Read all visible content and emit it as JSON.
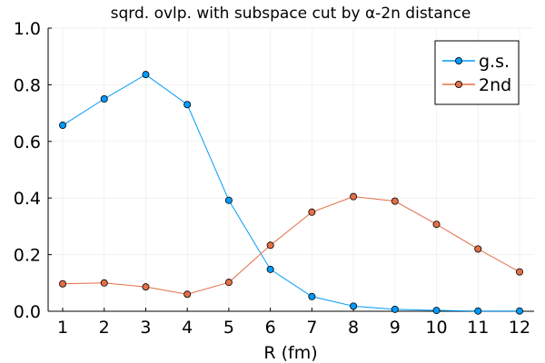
{
  "chart_data": {
    "type": "line",
    "title": "sqrd. ovlp. with subspace cut by α-2n distance",
    "xlabel": "R (fm)",
    "ylabel": "",
    "x": [
      1,
      2,
      3,
      4,
      5,
      6,
      7,
      8,
      9,
      10,
      11,
      12
    ],
    "xlim": [
      0.65,
      12.35
    ],
    "ylim": [
      0,
      1
    ],
    "xticks": [
      1,
      2,
      3,
      4,
      5,
      6,
      7,
      8,
      9,
      10,
      11,
      12
    ],
    "yticks": [
      0.0,
      0.2,
      0.4,
      0.6,
      0.8,
      1.0
    ],
    "ytick_labels": [
      "0.0",
      "0.2",
      "0.4",
      "0.6",
      "0.8",
      "1.0"
    ],
    "grid": true,
    "legend_position": "top-right",
    "series": [
      {
        "name": "g.s.",
        "color": "#009AFA",
        "values": [
          0.657,
          0.75,
          0.836,
          0.73,
          0.392,
          0.148,
          0.052,
          0.018,
          0.007,
          0.003,
          0.001,
          0.001
        ]
      },
      {
        "name": "2nd",
        "color": "#E36F47",
        "values": [
          0.097,
          0.1,
          0.086,
          0.06,
          0.102,
          0.233,
          0.35,
          0.405,
          0.389,
          0.307,
          0.22,
          0.139
        ]
      }
    ]
  }
}
